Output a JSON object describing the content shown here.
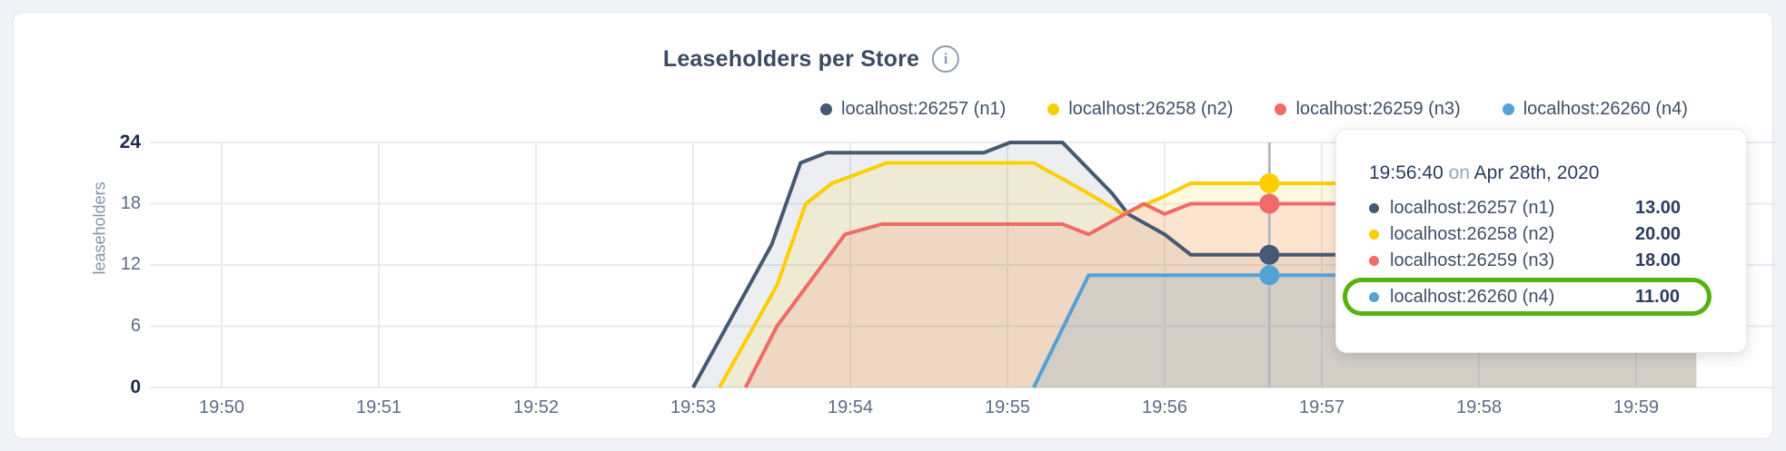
{
  "header": {
    "title": "Leaseholders per Store",
    "info_icon_glyph": "i"
  },
  "axis": {
    "ylabel": "leaseholders"
  },
  "tooltip": {
    "time": "19:56:40",
    "on_word": "on",
    "date": "Apr 28th, 2020",
    "highlight_color": "#55b211",
    "highlighted_row_index": 3,
    "rows": [
      {
        "label": "localhost:26257 (n1)",
        "value": "13.00",
        "color": "#475872"
      },
      {
        "label": "localhost:26258 (n2)",
        "value": "20.00",
        "color": "#ffcd02"
      },
      {
        "label": "localhost:26259 (n3)",
        "value": "18.00",
        "color": "#f16969"
      },
      {
        "label": "localhost:26260 (n4)",
        "value": "11.00",
        "color": "#54a1d4"
      }
    ]
  },
  "chart_data": {
    "type": "line",
    "title": "Leaseholders per Store",
    "xlabel": "",
    "ylabel": "leaseholders",
    "ylim": [
      0,
      24
    ],
    "y_ticks": [
      0,
      6,
      12,
      18,
      24
    ],
    "x_tick_labels": [
      "19:50",
      "19:51",
      "19:52",
      "19:53",
      "19:54",
      "19:55",
      "19:56",
      "19:57",
      "19:58",
      "19:59"
    ],
    "x_unit": "seconds after 19:50:00",
    "grid": true,
    "legend_position": "top",
    "series": [
      {
        "name": "localhost:26257 (n1)",
        "color": "#475872",
        "fill_opacity": 0.1,
        "points": [
          [
            180,
            0
          ],
          [
            210,
            14
          ],
          [
            221,
            22
          ],
          [
            231,
            23
          ],
          [
            291,
            23
          ],
          [
            301,
            24
          ],
          [
            321,
            24
          ],
          [
            340,
            19
          ],
          [
            346,
            17
          ],
          [
            360,
            15
          ],
          [
            370,
            13
          ],
          [
            563,
            13
          ]
        ]
      },
      {
        "name": "localhost:26258 (n2)",
        "color": "#ffcd02",
        "fill_opacity": 0.12,
        "points": [
          [
            190,
            0
          ],
          [
            212,
            10
          ],
          [
            223,
            18
          ],
          [
            233,
            20
          ],
          [
            254,
            22
          ],
          [
            310,
            22
          ],
          [
            331,
            19
          ],
          [
            344,
            17
          ],
          [
            358,
            18.5
          ],
          [
            370,
            20
          ],
          [
            563,
            20
          ]
        ]
      },
      {
        "name": "localhost:26259 (n3)",
        "color": "#f16969",
        "fill_opacity": 0.15,
        "points": [
          [
            200,
            0
          ],
          [
            212,
            6
          ],
          [
            238,
            15
          ],
          [
            252,
            16
          ],
          [
            321,
            16
          ],
          [
            331,
            15
          ],
          [
            352,
            18
          ],
          [
            360,
            17
          ],
          [
            370,
            18
          ],
          [
            563,
            18
          ]
        ]
      },
      {
        "name": "localhost:26260 (n4)",
        "color": "#54a1d4",
        "fill_opacity": 0.18,
        "points": [
          [
            310,
            0
          ],
          [
            331,
            11
          ],
          [
            563,
            11
          ]
        ]
      }
    ],
    "hover": {
      "t": 400,
      "time": "19:56:40",
      "date": "Apr 28th, 2020",
      "values": [
        13,
        20,
        18,
        11
      ]
    }
  }
}
